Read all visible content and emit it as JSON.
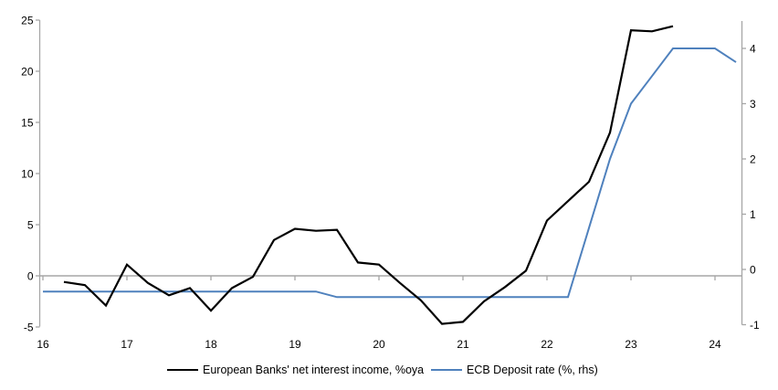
{
  "figure": {
    "background": "#ffffff",
    "text_color": "#000000",
    "axis_color": "#a6a6a6"
  },
  "chart_data": {
    "type": "line",
    "title": "",
    "xlabel": "",
    "ylabel_left": "",
    "ylabel_right": "",
    "grid": false,
    "legend_position": "bottom",
    "x_axis": {
      "ticks": [
        16,
        17,
        18,
        19,
        20,
        21,
        22,
        23,
        24
      ],
      "tick_labels": [
        "16",
        "17",
        "18",
        "19",
        "20",
        "21",
        "22",
        "23",
        "24"
      ],
      "range": [
        16,
        24.35
      ]
    },
    "y_axis_left": {
      "ticks": [
        25,
        20,
        15,
        10,
        5,
        0,
        -5
      ],
      "tick_labels": [
        "25",
        "20",
        "15",
        "10",
        "5",
        "0",
        "-5"
      ],
      "range": [
        -5,
        25
      ],
      "zero_line": true
    },
    "y_axis_right": {
      "ticks": [
        4,
        3,
        2,
        1,
        0,
        -1
      ],
      "tick_labels": [
        "4",
        "3",
        "2",
        "1",
        "0",
        "-1"
      ],
      "range": [
        -1,
        4.55
      ]
    },
    "series": [
      {
        "name": "European Banks' net interest income, %oya",
        "axis": "left",
        "color": "#000000",
        "line_width": 2.2,
        "x": [
          16.25,
          16.5,
          16.75,
          17.0,
          17.25,
          17.5,
          17.75,
          18.0,
          18.25,
          18.5,
          18.75,
          19.0,
          19.25,
          19.5,
          19.75,
          20.0,
          20.25,
          20.5,
          20.75,
          21.0,
          21.25,
          21.5,
          21.75,
          22.0,
          22.25,
          22.5,
          22.75,
          23.0,
          23.25,
          23.5
        ],
        "y": [
          -0.6,
          -0.9,
          -2.9,
          1.1,
          -0.7,
          -1.9,
          -1.2,
          -3.4,
          -1.2,
          -0.1,
          3.5,
          4.6,
          4.4,
          4.5,
          1.3,
          1.1,
          -0.7,
          -2.4,
          -4.7,
          -4.5,
          -2.5,
          -1.1,
          0.5,
          5.4,
          7.3,
          9.2,
          14.0,
          24.0,
          23.9,
          24.4
        ]
      },
      {
        "name": "ECB Deposit rate (%, rhs)",
        "axis": "right",
        "color": "#4f81bd",
        "line_width": 2,
        "x": [
          16.0,
          16.25,
          16.5,
          16.75,
          17.0,
          17.25,
          17.5,
          17.75,
          18.0,
          18.25,
          18.5,
          18.75,
          19.0,
          19.25,
          19.5,
          19.75,
          20.0,
          20.25,
          20.5,
          20.75,
          21.0,
          21.25,
          21.5,
          21.75,
          22.0,
          22.25,
          22.5,
          22.75,
          23.0,
          23.25,
          23.5,
          23.75,
          24.0,
          24.25
        ],
        "y": [
          -0.4,
          -0.4,
          -0.4,
          -0.4,
          -0.4,
          -0.4,
          -0.4,
          -0.4,
          -0.4,
          -0.4,
          -0.4,
          -0.4,
          -0.4,
          -0.4,
          -0.5,
          -0.5,
          -0.5,
          -0.5,
          -0.5,
          -0.5,
          -0.5,
          -0.5,
          -0.5,
          -0.5,
          -0.5,
          -0.5,
          0.75,
          2.0,
          3.0,
          3.5,
          4.0,
          4.0,
          4.0,
          3.75
        ]
      }
    ]
  }
}
